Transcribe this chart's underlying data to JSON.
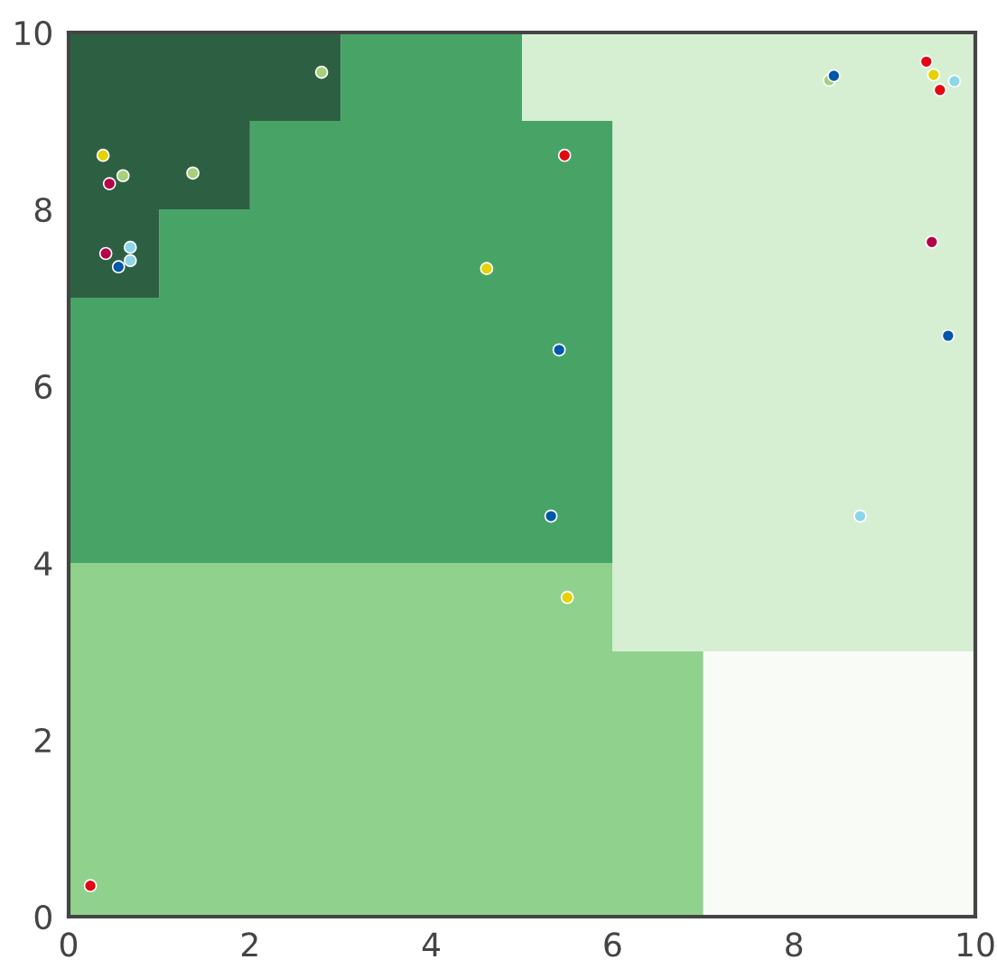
{
  "chart_data": {
    "type": "area",
    "stacked": true,
    "x": [
      0,
      1,
      1,
      2,
      2,
      3,
      3,
      5,
      5,
      6,
      6,
      7,
      7,
      10
    ],
    "xlim": [
      0,
      10
    ],
    "ylim": [
      0,
      10
    ],
    "xticks": [
      0,
      2,
      4,
      6,
      8,
      10
    ],
    "yticks": [
      0,
      2,
      4,
      6,
      8,
      10
    ],
    "grid": false,
    "series": [
      {
        "color": "#90d18e",
        "values": [
          4,
          4,
          4,
          4,
          4,
          4,
          4,
          4,
          4,
          4,
          3,
          3,
          null,
          null
        ]
      },
      {
        "color": "#f8fbf6",
        "values": [
          null,
          null,
          null,
          null,
          null,
          null,
          null,
          null,
          null,
          null,
          null,
          null,
          3,
          3
        ]
      },
      {
        "color": "#48a466",
        "values": [
          3,
          3,
          4,
          4,
          5,
          5,
          6,
          6,
          5,
          5,
          null,
          null,
          null,
          null
        ]
      },
      {
        "color": "#2d6043",
        "values": [
          3,
          3,
          2,
          2,
          1,
          1,
          null,
          null,
          null,
          null,
          null,
          null,
          null,
          null
        ]
      },
      {
        "color": "#d6efd3",
        "values": [
          null,
          null,
          null,
          null,
          null,
          null,
          null,
          null,
          1,
          1,
          7,
          7,
          7,
          7
        ]
      },
      {
        "type": "scatter",
        "color": "#e30613",
        "x": [
          0.24,
          5.47,
          9.46,
          9.61
        ],
        "values": [
          0.35,
          8.61,
          9.67,
          9.35
        ]
      },
      {
        "type": "scatter",
        "color": "#b5004b",
        "x": [
          0.45,
          0.41,
          9.52
        ],
        "values": [
          8.29,
          7.5,
          7.63
        ]
      },
      {
        "type": "scatter",
        "color": "#e6d200",
        "x": [
          0.38,
          4.61,
          5.5,
          9.54
        ],
        "values": [
          8.61,
          7.33,
          3.61,
          9.52
        ]
      },
      {
        "type": "scatter",
        "color": "#a6d07a",
        "x": [
          0.6,
          1.37,
          2.79,
          8.39
        ],
        "values": [
          8.38,
          8.41,
          9.55,
          9.46
        ]
      },
      {
        "type": "scatter",
        "color": "#0057a8",
        "x": [
          0.55,
          5.41,
          5.32,
          8.44,
          9.7
        ],
        "values": [
          7.35,
          6.41,
          4.53,
          9.51,
          6.57
        ]
      },
      {
        "type": "scatter",
        "color": "#8dd6e8",
        "x": [
          0.68,
          0.68,
          9.77,
          8.73
        ],
        "values": [
          7.57,
          7.42,
          9.45,
          4.53
        ]
      }
    ]
  }
}
